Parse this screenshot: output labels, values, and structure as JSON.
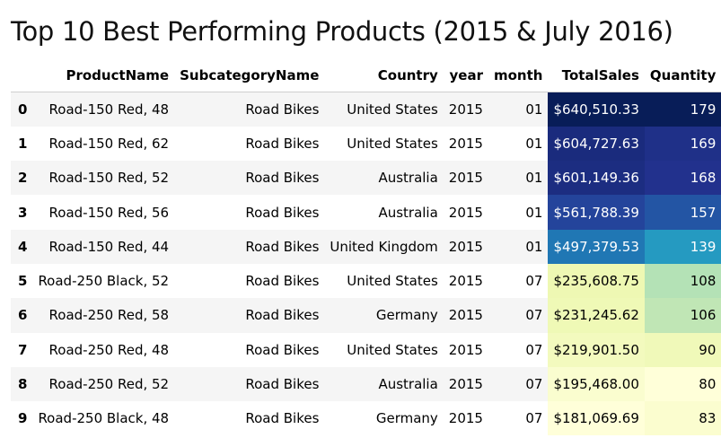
{
  "title": "Top 10 Best Performing Products (2015 & July 2016)",
  "table": {
    "columns": [
      "ProductName",
      "SubcategoryName",
      "Country",
      "year",
      "month",
      "TotalSales",
      "Quantity"
    ],
    "rows": [
      {
        "index": "0",
        "ProductName": "Road-150 Red, 48",
        "SubcategoryName": "Road Bikes",
        "Country": "United States",
        "year": "2015",
        "month": "01",
        "TotalSales": "$640,510.33",
        "Quantity": "179",
        "sales_value": 640510.33,
        "quantity_value": 179
      },
      {
        "index": "1",
        "ProductName": "Road-150 Red, 62",
        "SubcategoryName": "Road Bikes",
        "Country": "United States",
        "year": "2015",
        "month": "01",
        "TotalSales": "$604,727.63",
        "Quantity": "169",
        "sales_value": 604727.63,
        "quantity_value": 169
      },
      {
        "index": "2",
        "ProductName": "Road-150 Red, 52",
        "SubcategoryName": "Road Bikes",
        "Country": "Australia",
        "year": "2015",
        "month": "01",
        "TotalSales": "$601,149.36",
        "Quantity": "168",
        "sales_value": 601149.36,
        "quantity_value": 168
      },
      {
        "index": "3",
        "ProductName": "Road-150 Red, 56",
        "SubcategoryName": "Road Bikes",
        "Country": "Australia",
        "year": "2015",
        "month": "01",
        "TotalSales": "$561,788.39",
        "Quantity": "157",
        "sales_value": 561788.39,
        "quantity_value": 157
      },
      {
        "index": "4",
        "ProductName": "Road-150 Red, 44",
        "SubcategoryName": "Road Bikes",
        "Country": "United Kingdom",
        "year": "2015",
        "month": "01",
        "TotalSales": "$497,379.53",
        "Quantity": "139",
        "sales_value": 497379.53,
        "quantity_value": 139
      },
      {
        "index": "5",
        "ProductName": "Road-250 Black, 52",
        "SubcategoryName": "Road Bikes",
        "Country": "United States",
        "year": "2015",
        "month": "07",
        "TotalSales": "$235,608.75",
        "Quantity": "108",
        "sales_value": 235608.75,
        "quantity_value": 108
      },
      {
        "index": "6",
        "ProductName": "Road-250 Red, 58",
        "SubcategoryName": "Road Bikes",
        "Country": "Germany",
        "year": "2015",
        "month": "07",
        "TotalSales": "$231,245.62",
        "Quantity": "106",
        "sales_value": 231245.62,
        "quantity_value": 106
      },
      {
        "index": "7",
        "ProductName": "Road-250 Red, 48",
        "SubcategoryName": "Road Bikes",
        "Country": "United States",
        "year": "2015",
        "month": "07",
        "TotalSales": "$219,901.50",
        "Quantity": "90",
        "sales_value": 219901.5,
        "quantity_value": 90
      },
      {
        "index": "8",
        "ProductName": "Road-250 Red, 52",
        "SubcategoryName": "Road Bikes",
        "Country": "Australia",
        "year": "2015",
        "month": "07",
        "TotalSales": "$195,468.00",
        "Quantity": "80",
        "sales_value": 195468.0,
        "quantity_value": 80
      },
      {
        "index": "9",
        "ProductName": "Road-250 Black, 48",
        "SubcategoryName": "Road Bikes",
        "Country": "Germany",
        "year": "2015",
        "month": "07",
        "TotalSales": "$181,069.69",
        "Quantity": "83",
        "sales_value": 181069.69,
        "quantity_value": 83
      }
    ]
  },
  "colormap": {
    "name": "YlGnBu",
    "stops": [
      "#ffffd9",
      "#edf8b1",
      "#c7e9b4",
      "#7fcdbb",
      "#41b6c4",
      "#1d91c0",
      "#225ea8",
      "#253494",
      "#081d58"
    ],
    "light_text": "#ffffff",
    "dark_text": "#000000"
  }
}
